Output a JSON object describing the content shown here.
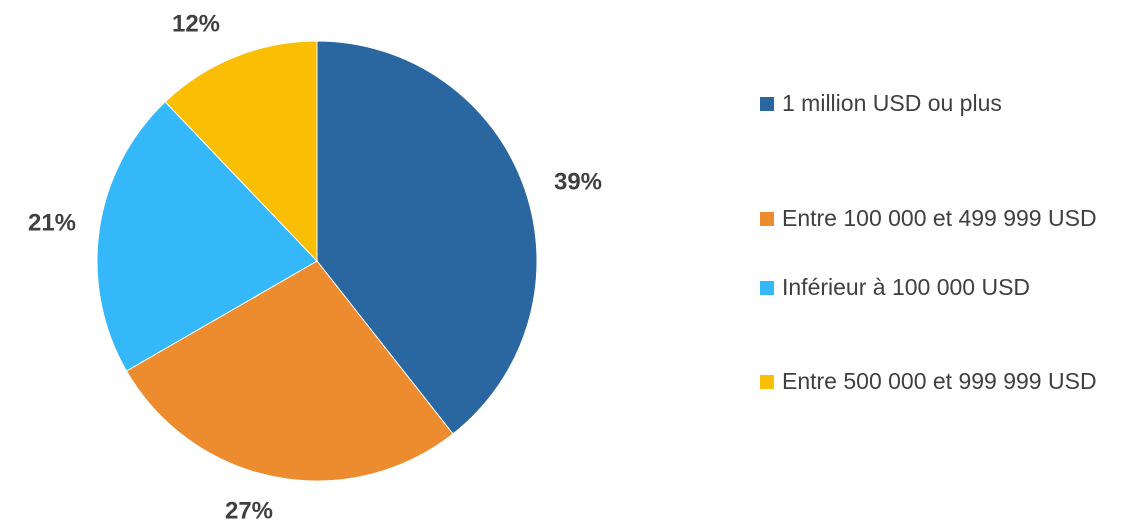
{
  "chart_data": {
    "type": "pie",
    "title": "",
    "legend_position": "right",
    "slices": [
      {
        "label": "1 million USD ou plus",
        "value": 39,
        "value_label": "39%",
        "color": "#2A669F"
      },
      {
        "label": "Entre 100 000 et 499 999 USD",
        "value": 27,
        "value_label": "27%",
        "color": "#EC8C2F"
      },
      {
        "label": "Inférieur à 100 000 USD",
        "value": 21,
        "value_label": "21%",
        "color": "#35B8FA"
      },
      {
        "label": "Entre 500 000 et 999 999 USD",
        "value": 12,
        "value_label": "12%",
        "color": "#FABE05"
      }
    ]
  }
}
